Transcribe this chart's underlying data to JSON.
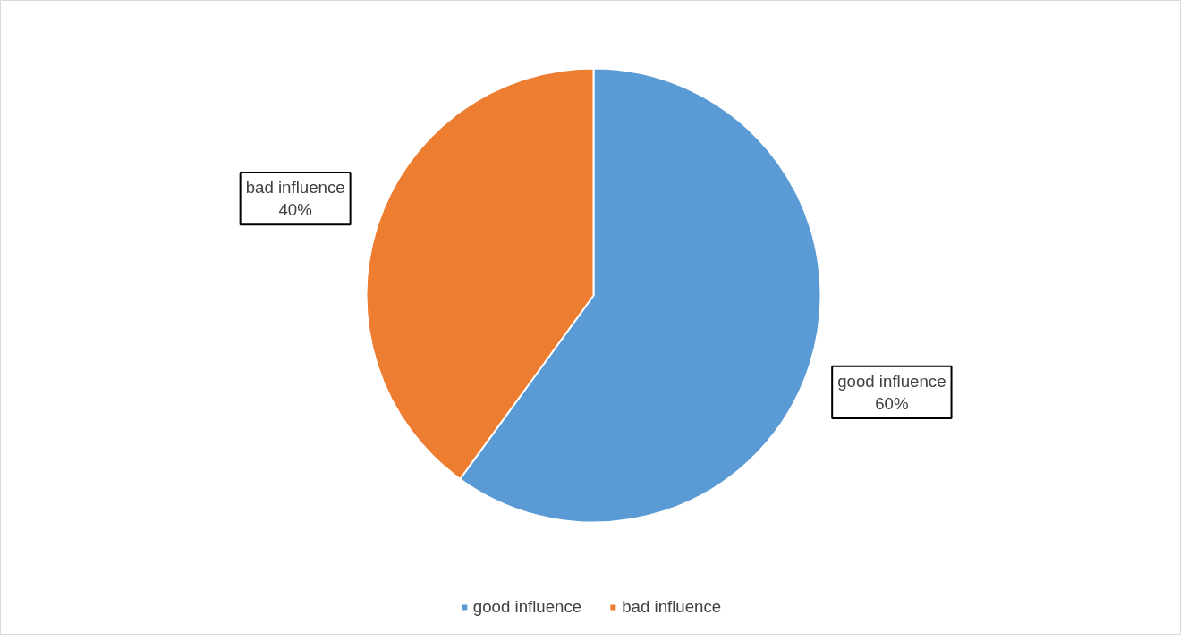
{
  "chart_data": {
    "type": "pie",
    "categories": [
      "good influence",
      "bad influence"
    ],
    "values": [
      60,
      40
    ],
    "colors": [
      "#5b9bd5",
      "#ed7d31"
    ],
    "value_labels": [
      "60%",
      "40%"
    ],
    "legend": "bottom"
  }
}
